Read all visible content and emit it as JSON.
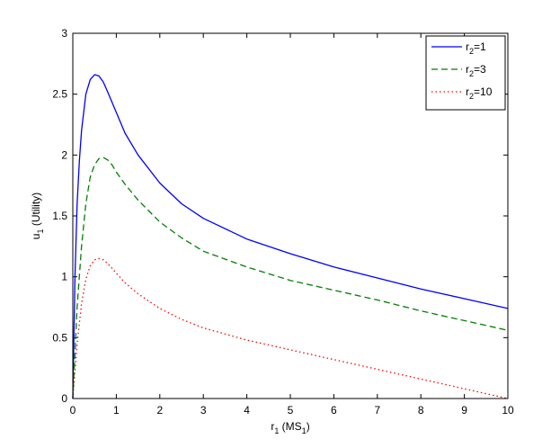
{
  "chart_data": {
    "type": "line",
    "xlabel": {
      "main": "r",
      "sub": "1",
      "rest": " (MS",
      "sub2": "1",
      "tail": ")"
    },
    "ylabel": {
      "main": "u",
      "sub": "1",
      "rest": " (Utility)"
    },
    "xlim": [
      0,
      10
    ],
    "ylim": [
      0,
      3
    ],
    "xticks": [
      "0",
      "1",
      "2",
      "3",
      "4",
      "5",
      "6",
      "7",
      "8",
      "9",
      "10"
    ],
    "yticks": [
      "0",
      "0.5",
      "1",
      "1.5",
      "2",
      "2.5",
      "3"
    ],
    "legend_position": "top-right",
    "series": [
      {
        "name": "r2=1",
        "legend": {
          "main": "r",
          "sub": "2",
          "rest": "=1"
        },
        "color": "#0000ff",
        "style": "solid",
        "x": [
          0,
          0.05,
          0.1,
          0.15,
          0.2,
          0.3,
          0.4,
          0.5,
          0.6,
          0.7,
          0.8,
          1.0,
          1.2,
          1.5,
          2.0,
          2.5,
          3.0,
          4.0,
          5.0,
          6.0,
          7.0,
          8.0,
          9.0,
          10.0
        ],
        "y": [
          0,
          1.0,
          1.6,
          1.95,
          2.2,
          2.5,
          2.62,
          2.66,
          2.65,
          2.6,
          2.52,
          2.35,
          2.18,
          2.0,
          1.77,
          1.6,
          1.48,
          1.31,
          1.19,
          1.08,
          0.99,
          0.9,
          0.82,
          0.74
        ]
      },
      {
        "name": "r2=3",
        "legend": {
          "main": "r",
          "sub": "2",
          "rest": "=3"
        },
        "color": "#008000",
        "style": "dashed",
        "x": [
          0,
          0.1,
          0.2,
          0.3,
          0.4,
          0.5,
          0.6,
          0.7,
          0.8,
          0.9,
          1.0,
          1.2,
          1.5,
          2.0,
          2.5,
          3.0,
          4.0,
          5.0,
          6.0,
          7.0,
          8.0,
          9.0,
          10.0
        ],
        "y": [
          0,
          0.75,
          1.25,
          1.6,
          1.82,
          1.92,
          1.97,
          1.98,
          1.96,
          1.92,
          1.86,
          1.76,
          1.63,
          1.45,
          1.32,
          1.21,
          1.08,
          0.97,
          0.89,
          0.81,
          0.72,
          0.64,
          0.56
        ]
      },
      {
        "name": "r2=10",
        "legend": {
          "main": "r",
          "sub": "2",
          "rest": "=10"
        },
        "color": "#ff0000",
        "style": "dotted",
        "x": [
          0,
          0.1,
          0.2,
          0.3,
          0.4,
          0.5,
          0.6,
          0.7,
          0.8,
          0.9,
          1.0,
          1.2,
          1.5,
          2.0,
          2.5,
          3.0,
          4.0,
          5.0,
          6.0,
          7.0,
          8.0,
          9.0,
          10.0
        ],
        "y": [
          0,
          0.45,
          0.78,
          0.98,
          1.09,
          1.14,
          1.15,
          1.14,
          1.11,
          1.07,
          1.03,
          0.95,
          0.86,
          0.74,
          0.65,
          0.58,
          0.48,
          0.4,
          0.32,
          0.24,
          0.16,
          0.08,
          0.0
        ]
      }
    ]
  }
}
